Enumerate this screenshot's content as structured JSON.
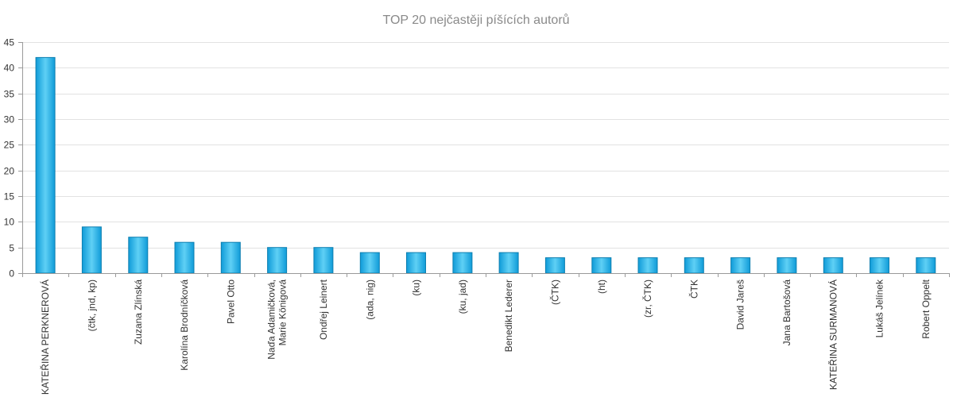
{
  "chart_data": {
    "type": "bar",
    "title": "TOP 20 nejčastěji píšících autorů",
    "xlabel": "",
    "ylabel": "",
    "ylim": [
      0,
      45
    ],
    "yticks": [
      0,
      5,
      10,
      15,
      20,
      25,
      30,
      35,
      40,
      45
    ],
    "grid": true,
    "legend": "none",
    "colors": {
      "bar_top": "#5fd0f5",
      "bar_bottom": "#0f9bd8",
      "bar_border": "#0e7fb0",
      "title": "#8a8a8a",
      "grid": "#e2e2e2"
    },
    "categories": [
      [
        "KATEŘINA PERKNEROVÁ"
      ],
      [
        "(čtk, jnd, kp)"
      ],
      [
        "Zuzana Zlínská"
      ],
      [
        "Karolína Brodníčková"
      ],
      [
        "Pavel Otto"
      ],
      [
        "Naďa Adamičková,",
        "Marie Königová"
      ],
      [
        "Ondřej Leinert"
      ],
      [
        "(ada, nig)"
      ],
      [
        "(ku)"
      ],
      [
        "(ku, jad)"
      ],
      [
        "Benedikt Lederer"
      ],
      [
        "(ČTK)"
      ],
      [
        "(ht)"
      ],
      [
        "(zr, ČTK)"
      ],
      [
        "ČTK"
      ],
      [
        "David Jareš"
      ],
      [
        "Jana Bartošová"
      ],
      [
        "KATEŘINA SURMANOVÁ"
      ],
      [
        "Lukáš Jelínek"
      ],
      [
        "Robert Oppelt"
      ]
    ],
    "values": [
      42,
      9,
      7,
      6,
      6,
      5,
      5,
      4,
      4,
      4,
      4,
      3,
      3,
      3,
      3,
      3,
      3,
      3,
      3,
      3
    ]
  }
}
